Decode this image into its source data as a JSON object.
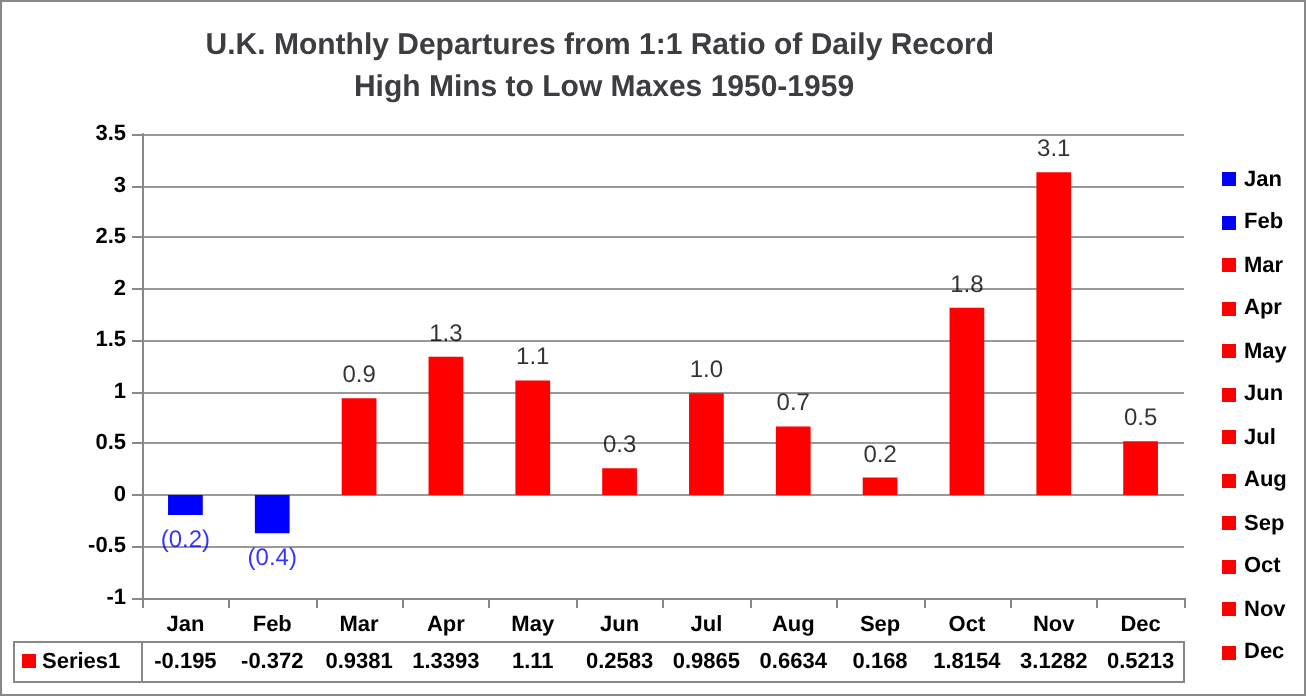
{
  "chart_data": {
    "type": "bar",
    "title": "U.K. Monthly Departures from 1:1 Ratio of Daily Record High Mins to Low Maxes 1950-1959",
    "categories": [
      "Jan",
      "Feb",
      "Mar",
      "Apr",
      "May",
      "Jun",
      "Jul",
      "Aug",
      "Sep",
      "Oct",
      "Nov",
      "Dec"
    ],
    "series": [
      {
        "name": "Series1",
        "color": "#ff0000",
        "values": [
          -0.195,
          -0.372,
          0.9381,
          1.3393,
          1.11,
          0.2583,
          0.9865,
          0.6634,
          0.168,
          1.8154,
          3.1282,
          0.5213
        ],
        "colors": [
          "#0000ff",
          "#0000ff",
          "#ff0000",
          "#ff0000",
          "#ff0000",
          "#ff0000",
          "#ff0000",
          "#ff0000",
          "#ff0000",
          "#ff0000",
          "#ff0000",
          "#ff0000"
        ]
      }
    ],
    "annotations": [
      {
        "text": "(0.2)",
        "x": "Jan",
        "y": -0.195
      },
      {
        "text": "(0.4)",
        "x": "Feb",
        "y": -0.372
      },
      {
        "text": "0.9",
        "x": "Mar",
        "y": 0.9381
      },
      {
        "text": "1.3",
        "x": "Apr",
        "y": 1.3393
      },
      {
        "text": "1.1",
        "x": "May",
        "y": 1.11
      },
      {
        "text": "0.3",
        "x": "Jun",
        "y": 0.2583
      },
      {
        "text": "1.0",
        "x": "Jul",
        "y": 0.9865
      },
      {
        "text": "0.7",
        "x": "Aug",
        "y": 0.6634
      },
      {
        "text": "0.2",
        "x": "Sep",
        "y": 0.168
      },
      {
        "text": "1.8",
        "x": "Oct",
        "y": 1.8154
      },
      {
        "text": "3.1",
        "x": "Nov",
        "y": 3.1282
      },
      {
        "text": "0.5",
        "x": "Dec",
        "y": 0.5213
      }
    ],
    "ylim": [
      -1,
      3.5
    ],
    "yticks": [
      -1,
      -0.5,
      0,
      0.5,
      1,
      1.5,
      2,
      2.5,
      3,
      3.5
    ],
    "grid": "y",
    "data_labels": true,
    "legend": "bottom left"
  }
}
